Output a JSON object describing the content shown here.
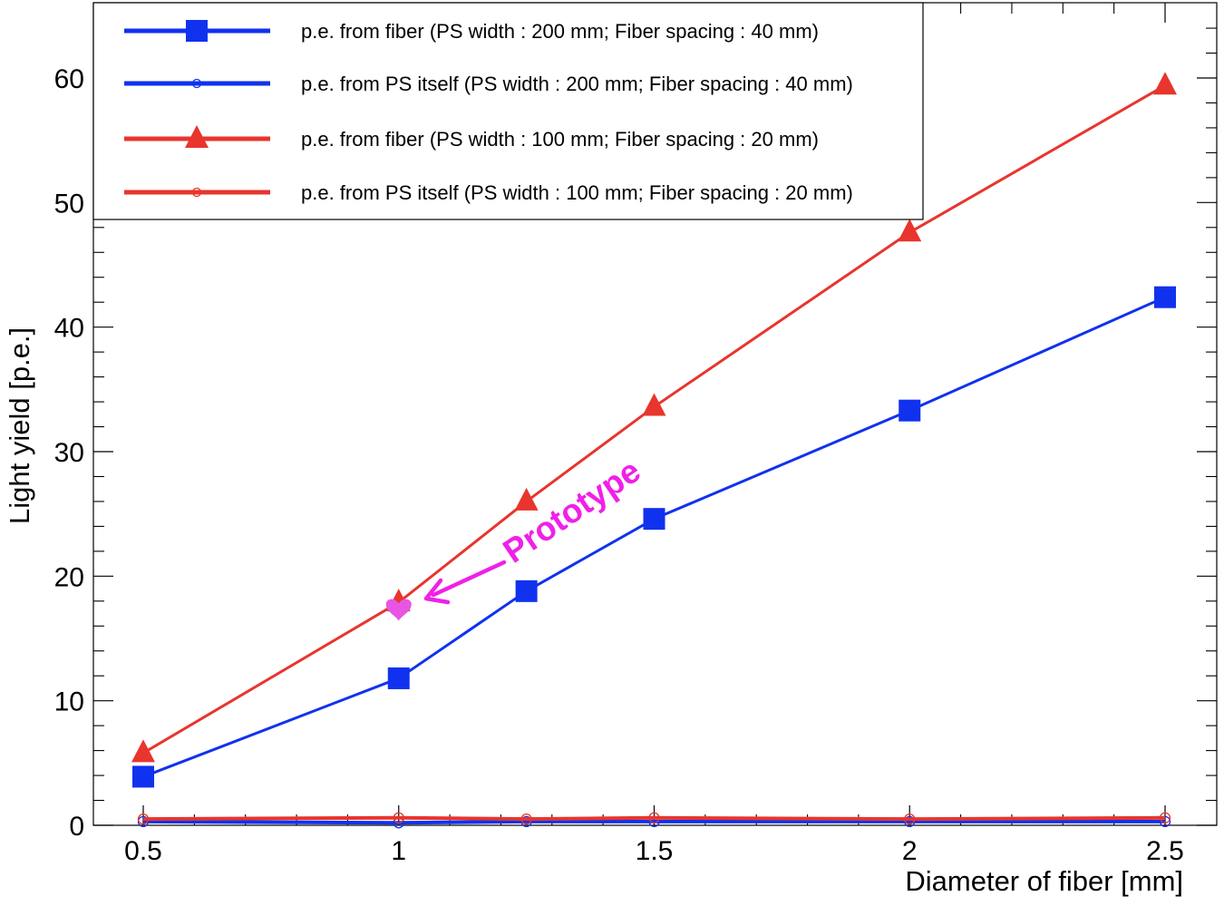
{
  "chart_data": {
    "type": "line",
    "title": "",
    "xlabel": "Diameter of fiber [mm]",
    "ylabel": "Light yield [p.e.]",
    "xlim": [
      0.4,
      2.6
    ],
    "ylim": [
      0,
      65
    ],
    "grid": false,
    "legend_position": "top-left",
    "x_ticks": [
      {
        "value": 0.5,
        "label": "0.5"
      },
      {
        "value": 1,
        "label": "1"
      },
      {
        "value": 1.5,
        "label": "1.5"
      },
      {
        "value": 2,
        "label": "2"
      },
      {
        "value": 2.5,
        "label": "2.5"
      }
    ],
    "y_ticks": [
      {
        "value": 0,
        "label": "0"
      },
      {
        "value": 10,
        "label": "10"
      },
      {
        "value": 20,
        "label": "20"
      },
      {
        "value": 30,
        "label": "30"
      },
      {
        "value": 40,
        "label": "40"
      },
      {
        "value": 50,
        "label": "50"
      },
      {
        "value": 60,
        "label": "60"
      }
    ],
    "x": [
      0.5,
      1,
      1.25,
      1.5,
      2,
      2.5
    ],
    "series": [
      {
        "name": "p.e. from fiber (PS width : 200 mm; Fiber spacing : 40 mm)",
        "color": "#1032ee",
        "marker": "square",
        "values": [
          3.9,
          11.8,
          18.8,
          24.6,
          33.3,
          42.4
        ]
      },
      {
        "name": "p.e. from PS itself (PS width : 200 mm; Fiber spacing : 40 mm)",
        "color": "#1032ee",
        "marker": "open-circle",
        "values": [
          0.3,
          0.2,
          0.3,
          0.3,
          0.3,
          0.3
        ]
      },
      {
        "name": "p.e. from fiber (PS width : 100 mm; Fiber spacing : 20 mm)",
        "color": "#e8352d",
        "marker": "triangle",
        "values": [
          5.8,
          17.9,
          26.0,
          33.6,
          47.6,
          59.4
        ]
      },
      {
        "name": "p.e. from PS itself (PS width : 100 mm; Fiber spacing : 20 mm)",
        "color": "#e8352d",
        "marker": "open-circle",
        "values": [
          0.5,
          0.6,
          0.5,
          0.6,
          0.5,
          0.6
        ]
      }
    ],
    "annotations": [
      {
        "text": "Prototype",
        "x": 1,
        "y": 17.3,
        "marker": "heart",
        "color": "#f020e8",
        "marker_color": "#e855e2"
      }
    ]
  }
}
